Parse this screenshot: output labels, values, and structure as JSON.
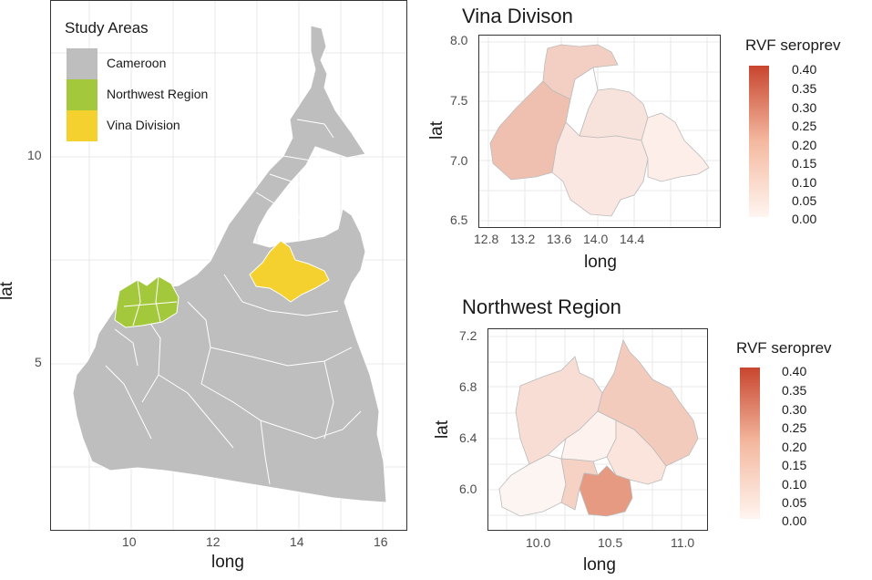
{
  "main_map": {
    "xlabel": "long",
    "ylabel": "lat",
    "xticks": [
      "10",
      "12",
      "14",
      "16"
    ],
    "yticks": [
      "10",
      "5"
    ],
    "legend_title": "Study Areas",
    "legend": [
      {
        "label": "Cameroon",
        "color": "#bebebe"
      },
      {
        "label": "Northwest Region",
        "color": "#a3c83c"
      },
      {
        "label": "Vina Division",
        "color": "#f5d130"
      }
    ]
  },
  "vina_map": {
    "title": "Vina Divison",
    "xlabel": "long",
    "ylabel": "lat",
    "xticks": [
      "12.8",
      "13.2",
      "13.6",
      "14.0",
      "14.4"
    ],
    "yticks": [
      "8.0",
      "7.5",
      "7.0",
      "6.5"
    ],
    "legend_title": "RVF seroprev",
    "legend_ticks": [
      "0.40",
      "0.35",
      "0.30",
      "0.25",
      "0.20",
      "0.15",
      "0.10",
      "0.05",
      "0.00"
    ]
  },
  "northwest_map": {
    "title": "Northwest Region",
    "xlabel": "long",
    "ylabel": "lat",
    "xticks": [
      "10.0",
      "10.5",
      "11.0"
    ],
    "yticks": [
      "7.2",
      "6.8",
      "6.4",
      "6.0"
    ],
    "legend_title": "RVF seroprev",
    "legend_ticks": [
      "0.40",
      "0.35",
      "0.30",
      "0.25",
      "0.20",
      "0.15",
      "0.10",
      "0.05",
      "0.00"
    ]
  },
  "colors": {
    "panel_bg": "#ffffff",
    "grid": "#e8e8e8",
    "cameroon": "#bebebe",
    "northwest": "#a3c83c",
    "vina": "#f5d130",
    "seroprev_low": "#fff5f0",
    "seroprev_high": "#c8452e"
  }
}
